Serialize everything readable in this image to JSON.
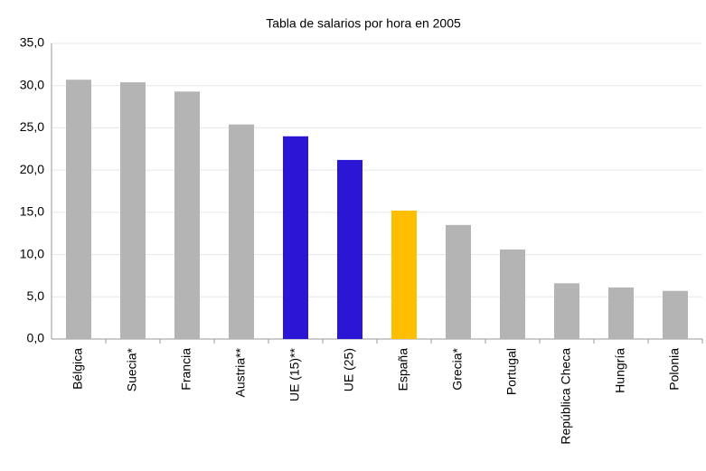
{
  "chart_data": {
    "type": "bar",
    "title": "Tabla de salarios por hora en 2005",
    "categories": [
      "Bélgica",
      "Suecia*",
      "Francia",
      "Austria**",
      "UE (15)**",
      "UE (25)",
      "España",
      "Grecia*",
      "Portugal",
      "República Checa",
      "Hungría",
      "Polonia"
    ],
    "values": [
      30.7,
      30.4,
      29.3,
      25.4,
      24.0,
      21.2,
      15.2,
      13.5,
      10.6,
      6.6,
      6.1,
      5.7
    ],
    "colors": [
      "#b4b4b4",
      "#b4b4b4",
      "#b4b4b4",
      "#b4b4b4",
      "#2b16d6",
      "#2b16d6",
      "#ffbf00",
      "#b4b4b4",
      "#b4b4b4",
      "#b4b4b4",
      "#b4b4b4",
      "#b4b4b4"
    ],
    "ylim": [
      0,
      35
    ],
    "yticks": [
      {
        "value": 0,
        "label": "0,0"
      },
      {
        "value": 5,
        "label": "5,0"
      },
      {
        "value": 10,
        "label": "10,0"
      },
      {
        "value": 15,
        "label": "15,0"
      },
      {
        "value": 20,
        "label": "20,0"
      },
      {
        "value": 25,
        "label": "25,0"
      },
      {
        "value": 30,
        "label": "30,0"
      },
      {
        "value": 35,
        "label": "35,0"
      }
    ],
    "grid": true
  }
}
